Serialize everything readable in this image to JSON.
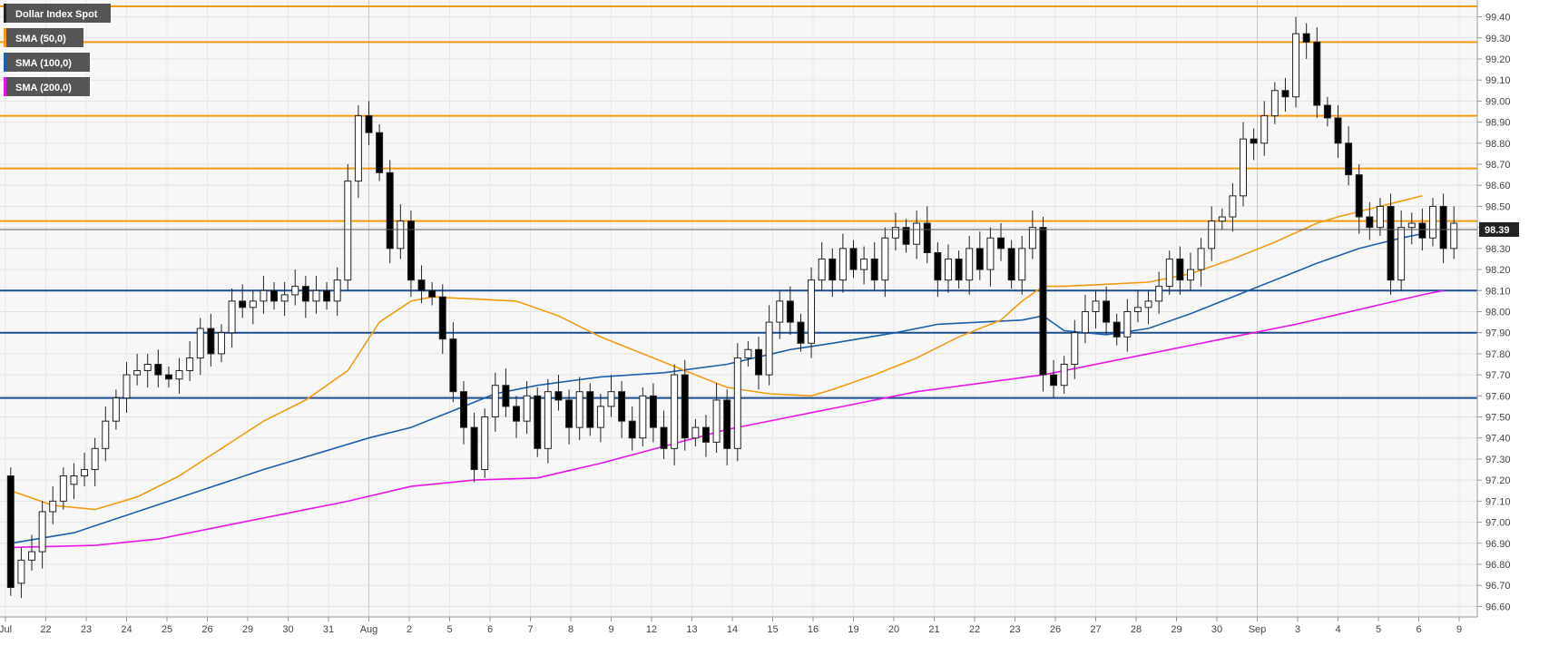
{
  "chart_data": {
    "type": "candlestick",
    "instrument": "Dollar Index Spot",
    "timeframe_note": "",
    "ylim": [
      96.55,
      99.48
    ],
    "y_ticks": [
      96.6,
      96.7,
      96.8,
      96.9,
      97.0,
      97.1,
      97.2,
      97.3,
      97.4,
      97.5,
      97.6,
      97.7,
      97.8,
      97.9,
      98.0,
      98.1,
      98.2,
      98.3,
      98.4,
      98.5,
      98.6,
      98.7,
      98.8,
      98.9,
      99.0,
      99.1,
      99.2,
      99.3,
      99.4
    ],
    "y_tick_labels": [
      "96.60",
      "96.70",
      "96.80",
      "96.90",
      "97.00",
      "97.10",
      "97.20",
      "97.30",
      "97.40",
      "97.50",
      "97.60",
      "97.70",
      "97.80",
      "97.90",
      "98.00",
      "98.10",
      "98.20",
      "98.30",
      "98.40",
      "98.50",
      "98.60",
      "98.70",
      "98.80",
      "98.90",
      "99.00",
      "99.10",
      "99.20",
      "99.30",
      "99.40"
    ],
    "x_tick_labels": [
      "Jul",
      "22",
      "23",
      "24",
      "25",
      "26",
      "29",
      "30",
      "31",
      "Aug",
      "2",
      "5",
      "6",
      "7",
      "8",
      "9",
      "12",
      "13",
      "14",
      "15",
      "16",
      "19",
      "20",
      "21",
      "22",
      "23",
      "26",
      "27",
      "28",
      "29",
      "30",
      "Sep",
      "3",
      "4",
      "5",
      "6",
      "9"
    ],
    "grid": true,
    "last_price": 98.39,
    "last_price_label": "98.39",
    "legend": [
      {
        "name": "Dollar Index Spot",
        "color": "#000000"
      },
      {
        "name": "SMA (50,0)",
        "color": "#f39c12"
      },
      {
        "name": "SMA (100,0)",
        "color": "#1f5fa8"
      },
      {
        "name": "SMA (200,0)",
        "color": "#e815e8"
      }
    ],
    "resistance_levels": [
      99.45,
      99.28,
      98.93,
      98.68,
      98.43
    ],
    "support_levels": [
      98.1,
      97.9,
      97.59
    ],
    "candles": [
      [
        97.22,
        96.69
      ],
      [
        96.71,
        96.82
      ],
      [
        96.82,
        96.86
      ],
      [
        96.86,
        97.05
      ],
      [
        97.05,
        97.1
      ],
      [
        97.1,
        97.22
      ],
      [
        97.18,
        97.22
      ],
      [
        97.22,
        97.25
      ],
      [
        97.25,
        97.35
      ],
      [
        97.35,
        97.48
      ],
      [
        97.48,
        97.59
      ],
      [
        97.59,
        97.7
      ],
      [
        97.7,
        97.72
      ],
      [
        97.72,
        97.75
      ],
      [
        97.75,
        97.7
      ],
      [
        97.7,
        97.68
      ],
      [
        97.68,
        97.72
      ],
      [
        97.72,
        97.78
      ],
      [
        97.78,
        97.92
      ],
      [
        97.92,
        97.8
      ],
      [
        97.8,
        97.9
      ],
      [
        97.9,
        98.05
      ],
      [
        98.05,
        98.02
      ],
      [
        98.02,
        98.05
      ],
      [
        98.05,
        98.1
      ],
      [
        98.1,
        98.05
      ],
      [
        98.05,
        98.08
      ],
      [
        98.08,
        98.12
      ],
      [
        98.12,
        98.05
      ],
      [
        98.05,
        98.1
      ],
      [
        98.1,
        98.05
      ],
      [
        98.05,
        98.15
      ],
      [
        98.15,
        98.62
      ],
      [
        98.62,
        98.93
      ],
      [
        98.93,
        98.85
      ],
      [
        98.85,
        98.66
      ],
      [
        98.66,
        98.3
      ],
      [
        98.3,
        98.43
      ],
      [
        98.43,
        98.15
      ],
      [
        98.15,
        98.1
      ],
      [
        98.1,
        98.07
      ],
      [
        98.07,
        97.87
      ],
      [
        97.87,
        97.62
      ],
      [
        97.62,
        97.45
      ],
      [
        97.45,
        97.25
      ],
      [
        97.25,
        97.5
      ],
      [
        97.5,
        97.65
      ],
      [
        97.65,
        97.55
      ],
      [
        97.55,
        97.48
      ],
      [
        97.48,
        97.6
      ],
      [
        97.6,
        97.35
      ],
      [
        97.35,
        97.62
      ],
      [
        97.62,
        97.58
      ],
      [
        97.58,
        97.45
      ],
      [
        97.45,
        97.62
      ],
      [
        97.62,
        97.45
      ],
      [
        97.45,
        97.55
      ],
      [
        97.55,
        97.62
      ],
      [
        97.62,
        97.48
      ],
      [
        97.48,
        97.4
      ],
      [
        97.4,
        97.6
      ],
      [
        97.6,
        97.45
      ],
      [
        97.45,
        97.35
      ],
      [
        97.35,
        97.7
      ],
      [
        97.7,
        97.4
      ],
      [
        97.4,
        97.45
      ],
      [
        97.45,
        97.38
      ],
      [
        97.38,
        97.58
      ],
      [
        97.58,
        97.35
      ],
      [
        97.35,
        97.78
      ],
      [
        97.78,
        97.82
      ],
      [
        97.82,
        97.7
      ],
      [
        97.7,
        97.95
      ],
      [
        97.95,
        98.05
      ],
      [
        98.05,
        97.95
      ],
      [
        97.95,
        97.85
      ],
      [
        97.85,
        98.15
      ],
      [
        98.15,
        98.25
      ],
      [
        98.25,
        98.15
      ],
      [
        98.15,
        98.3
      ],
      [
        98.3,
        98.2
      ],
      [
        98.2,
        98.25
      ],
      [
        98.25,
        98.15
      ],
      [
        98.15,
        98.35
      ],
      [
        98.35,
        98.4
      ],
      [
        98.4,
        98.32
      ],
      [
        98.32,
        98.42
      ],
      [
        98.42,
        98.28
      ],
      [
        98.28,
        98.15
      ],
      [
        98.15,
        98.25
      ],
      [
        98.25,
        98.15
      ],
      [
        98.15,
        98.3
      ],
      [
        98.3,
        98.2
      ],
      [
        98.2,
        98.35
      ],
      [
        98.35,
        98.3
      ],
      [
        98.3,
        98.15
      ],
      [
        98.15,
        98.3
      ],
      [
        98.3,
        98.4
      ],
      [
        98.4,
        97.7
      ],
      [
        97.7,
        97.65
      ],
      [
        97.65,
        97.75
      ],
      [
        97.75,
        97.9
      ],
      [
        97.9,
        98.0
      ],
      [
        98.0,
        98.05
      ],
      [
        98.05,
        97.95
      ],
      [
        97.95,
        97.88
      ],
      [
        97.88,
        98.0
      ],
      [
        98.0,
        98.02
      ],
      [
        98.02,
        98.05
      ],
      [
        98.05,
        98.12
      ],
      [
        98.12,
        98.25
      ],
      [
        98.25,
        98.15
      ],
      [
        98.15,
        98.2
      ],
      [
        98.2,
        98.3
      ],
      [
        98.3,
        98.43
      ],
      [
        98.43,
        98.45
      ],
      [
        98.45,
        98.55
      ],
      [
        98.55,
        98.82
      ],
      [
        98.82,
        98.8
      ],
      [
        98.8,
        98.93
      ],
      [
        98.93,
        99.05
      ],
      [
        99.05,
        99.02
      ],
      [
        99.02,
        99.32
      ],
      [
        99.32,
        99.28
      ],
      [
        99.28,
        98.98
      ],
      [
        98.98,
        98.92
      ],
      [
        98.92,
        98.8
      ],
      [
        98.8,
        98.65
      ],
      [
        98.65,
        98.45
      ],
      [
        98.45,
        98.4
      ],
      [
        98.4,
        98.5
      ],
      [
        98.5,
        98.15
      ],
      [
        98.15,
        98.4
      ],
      [
        98.4,
        98.42
      ],
      [
        98.42,
        98.35
      ],
      [
        98.35,
        98.5
      ],
      [
        98.5,
        98.3
      ],
      [
        98.3,
        98.42
      ]
    ],
    "sma50": [
      [
        0,
        97.15
      ],
      [
        4,
        97.08
      ],
      [
        8,
        97.06
      ],
      [
        12,
        97.12
      ],
      [
        16,
        97.22
      ],
      [
        20,
        97.35
      ],
      [
        24,
        97.48
      ],
      [
        28,
        97.58
      ],
      [
        32,
        97.72
      ],
      [
        35,
        97.95
      ],
      [
        38,
        98.05
      ],
      [
        40,
        98.07
      ],
      [
        44,
        98.06
      ],
      [
        48,
        98.05
      ],
      [
        52,
        97.98
      ],
      [
        56,
        97.88
      ],
      [
        60,
        97.8
      ],
      [
        64,
        97.72
      ],
      [
        68,
        97.64
      ],
      [
        72,
        97.61
      ],
      [
        76,
        97.6
      ],
      [
        78,
        97.63
      ],
      [
        82,
        97.7
      ],
      [
        86,
        97.78
      ],
      [
        90,
        97.88
      ],
      [
        94,
        97.96
      ],
      [
        96,
        98.05
      ],
      [
        98,
        98.12
      ],
      [
        100,
        98.12
      ],
      [
        104,
        98.13
      ],
      [
        108,
        98.14
      ],
      [
        112,
        98.18
      ],
      [
        116,
        98.25
      ],
      [
        120,
        98.33
      ],
      [
        124,
        98.42
      ],
      [
        126,
        98.45
      ],
      [
        130,
        98.5
      ],
      [
        134,
        98.55
      ]
    ],
    "sma100": [
      [
        0,
        96.9
      ],
      [
        6,
        96.95
      ],
      [
        12,
        97.05
      ],
      [
        18,
        97.15
      ],
      [
        24,
        97.25
      ],
      [
        30,
        97.34
      ],
      [
        34,
        97.4
      ],
      [
        38,
        97.45
      ],
      [
        42,
        97.53
      ],
      [
        46,
        97.61
      ],
      [
        50,
        97.65
      ],
      [
        56,
        97.69
      ],
      [
        62,
        97.71
      ],
      [
        68,
        97.75
      ],
      [
        74,
        97.82
      ],
      [
        78,
        97.85
      ],
      [
        84,
        97.9
      ],
      [
        88,
        97.94
      ],
      [
        92,
        97.95
      ],
      [
        96,
        97.96
      ],
      [
        98,
        97.98
      ],
      [
        100,
        97.91
      ],
      [
        104,
        97.89
      ],
      [
        108,
        97.92
      ],
      [
        112,
        97.99
      ],
      [
        116,
        98.07
      ],
      [
        120,
        98.15
      ],
      [
        124,
        98.23
      ],
      [
        128,
        98.3
      ],
      [
        132,
        98.35
      ],
      [
        134,
        98.37
      ]
    ],
    "sma200": [
      [
        0,
        96.88
      ],
      [
        8,
        96.89
      ],
      [
        14,
        96.92
      ],
      [
        20,
        96.98
      ],
      [
        26,
        97.04
      ],
      [
        32,
        97.1
      ],
      [
        38,
        97.17
      ],
      [
        44,
        97.2
      ],
      [
        50,
        97.21
      ],
      [
        56,
        97.28
      ],
      [
        62,
        97.36
      ],
      [
        68,
        97.44
      ],
      [
        74,
        97.5
      ],
      [
        80,
        97.56
      ],
      [
        86,
        97.62
      ],
      [
        92,
        97.66
      ],
      [
        98,
        97.7
      ],
      [
        104,
        97.76
      ],
      [
        110,
        97.82
      ],
      [
        116,
        97.88
      ],
      [
        122,
        97.94
      ],
      [
        128,
        98.01
      ],
      [
        134,
        98.08
      ],
      [
        136,
        98.1
      ]
    ]
  }
}
